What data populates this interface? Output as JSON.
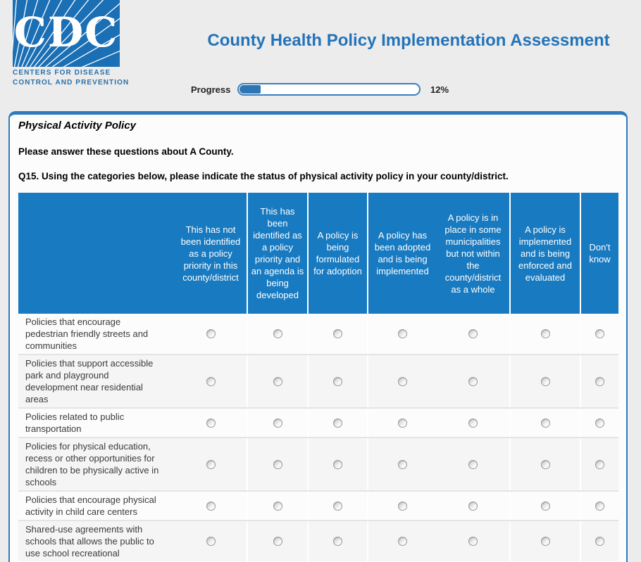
{
  "logo": {
    "acronym": "CDC",
    "line1": "CENTERS FOR DISEASE",
    "line2": "CONTROL AND PREVENTION"
  },
  "header": {
    "title": "County Health Policy Implementation Assessment"
  },
  "progress": {
    "label": "Progress",
    "percent": 12,
    "percent_text": "12%"
  },
  "section": {
    "heading": "Physical Activity Policy",
    "intro": "Please answer these questions about A County.",
    "question_number": "Q15.",
    "question_text": "Using the categories below, please indicate the status of physical activity policy in your county/district."
  },
  "matrix": {
    "columns": [
      "",
      "This has not been identified as a policy priority in this county/district",
      "This has been identified as a policy priority and an agenda is being developed",
      "A policy is being formulated for adoption",
      "A policy has been adopted and is being implemented",
      "A policy is in place in some municipalities but not within the county/district as a whole",
      "A policy is implemented and is being enforced and evaluated",
      "Don't know"
    ],
    "rows": [
      "Policies that encourage pedestrian friendly streets and communities",
      "Policies that support accessible park and playground development near residential areas",
      "Policies related to public transportation",
      "Policies for physical education, recess or other opportunities for children to be physically active in schools",
      "Policies that encourage physical activity in child care centers",
      "Shared-use agreements with schools that allows the public to use school recreational"
    ],
    "selected": []
  },
  "colors": {
    "brand_blue": "#1a6fb5",
    "table_header_blue": "#187ac0",
    "title_blue": "#2373ba",
    "panel_border_blue": "#2e7abf",
    "progress_fill_blue": "#2e75b4"
  }
}
